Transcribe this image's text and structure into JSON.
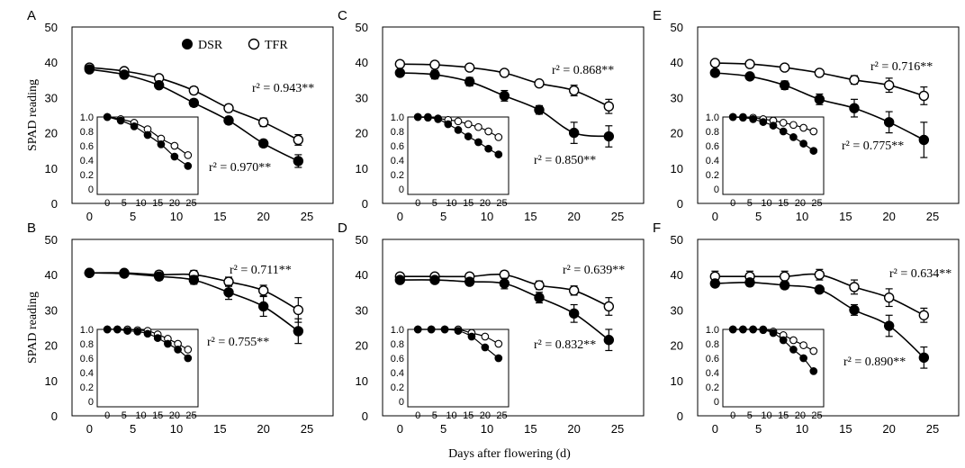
{
  "figure": {
    "ylabel": "SPAD reading",
    "xlabel": "Days after flowering (d)",
    "legend": {
      "dsr": "DSR",
      "tfr": "TFR"
    }
  },
  "chart_data": [
    {
      "panel": "A",
      "type": "line",
      "x": [
        0,
        4,
        8,
        12,
        16,
        20,
        24
      ],
      "series": [
        {
          "name": "DSR",
          "values": [
            38,
            36.5,
            33.5,
            28.5,
            23.5,
            17,
            12
          ],
          "err": [
            0.5,
            0.8,
            0.8,
            1,
            1,
            1,
            1.8
          ]
        },
        {
          "name": "TFR",
          "values": [
            38.5,
            37.5,
            35.5,
            32,
            27,
            23,
            18
          ],
          "err": [
            0.5,
            0.5,
            0.8,
            1,
            1,
            1.2,
            1.5
          ]
        }
      ],
      "annotations": [
        "r² = 0.943**",
        "r² = 0.970**"
      ],
      "xlim": [
        -2,
        28
      ],
      "ylim": [
        0,
        50
      ],
      "xticks": [
        0,
        5,
        10,
        15,
        20,
        25
      ],
      "yticks": [
        0,
        10,
        20,
        30,
        40,
        50
      ],
      "inset": {
        "x": [
          0,
          4,
          8,
          12,
          16,
          20,
          24
        ],
        "series": [
          {
            "name": "DSR",
            "values": [
              1.0,
              0.95,
              0.87,
              0.75,
              0.62,
              0.45,
              0.32
            ]
          },
          {
            "name": "TFR",
            "values": [
              1.0,
              0.97,
              0.92,
              0.83,
              0.7,
              0.6,
              0.47
            ]
          }
        ],
        "xlim": [
          -3,
          27
        ],
        "ylim": [
          0,
          1
        ],
        "xticks": [
          0,
          5,
          10,
          15,
          20,
          25
        ],
        "yticks": [
          "0",
          "0.2",
          "0.4",
          "0.6",
          "0.8",
          "1.0"
        ]
      }
    },
    {
      "panel": "B",
      "type": "line",
      "x": [
        0,
        4,
        8,
        12,
        16,
        20,
        24
      ],
      "series": [
        {
          "name": "DSR",
          "values": [
            40.5,
            40.3,
            39.5,
            38.5,
            35,
            31,
            24
          ],
          "err": [
            0.5,
            0.8,
            1,
            1.2,
            2,
            2.8,
            3.5
          ]
        },
        {
          "name": "TFR",
          "values": [
            40.5,
            40.5,
            40,
            40,
            38,
            35.5,
            30
          ],
          "err": [
            0.5,
            0.8,
            1,
            1.2,
            1.3,
            1.5,
            3.5
          ]
        }
      ],
      "annotations": [
        "r² = 0.711**",
        "r² = 0.755**"
      ],
      "xlim": [
        -2,
        28
      ],
      "ylim": [
        0,
        50
      ],
      "xticks": [
        0,
        5,
        10,
        15,
        20,
        25
      ],
      "yticks": [
        0,
        10,
        20,
        30,
        40,
        50
      ],
      "inset": {
        "x": [
          0,
          3,
          6,
          9,
          12,
          15,
          18,
          21,
          24
        ],
        "series": [
          {
            "name": "DSR",
            "values": [
              1.0,
              1.0,
              0.98,
              0.97,
              0.94,
              0.88,
              0.8,
              0.72,
              0.6
            ]
          },
          {
            "name": "TFR",
            "values": [
              1.0,
              1.0,
              1.0,
              0.99,
              0.98,
              0.93,
              0.87,
              0.8,
              0.72
            ]
          }
        ],
        "xlim": [
          -3,
          27
        ],
        "ylim": [
          0,
          1
        ],
        "xticks": [
          0,
          5,
          10,
          15,
          20,
          25
        ],
        "yticks": [
          "0",
          "0.2",
          "0.4",
          "0.6",
          "0.8",
          "1.0"
        ]
      }
    },
    {
      "panel": "C",
      "type": "line",
      "x": [
        0,
        4,
        8,
        12,
        16,
        20,
        24
      ],
      "series": [
        {
          "name": "DSR",
          "values": [
            37,
            36.5,
            34.5,
            30.5,
            26.5,
            20,
            19
          ],
          "err": [
            0.8,
            1.2,
            1.2,
            1.5,
            1.2,
            3,
            3
          ]
        },
        {
          "name": "TFR",
          "values": [
            39.5,
            39.3,
            38.5,
            37,
            34,
            32,
            27.5
          ],
          "err": [
            0.5,
            0.5,
            0.5,
            0.5,
            0.8,
            1.5,
            2
          ]
        }
      ],
      "annotations": [
        "r² = 0.868**",
        "r² = 0.850**"
      ],
      "xlim": [
        -2,
        28
      ],
      "ylim": [
        0,
        50
      ],
      "xticks": [
        0,
        5,
        10,
        15,
        20,
        25
      ],
      "yticks": [
        0,
        10,
        20,
        30,
        40,
        50
      ],
      "inset": {
        "x": [
          0,
          3,
          6,
          9,
          12,
          15,
          18,
          21,
          24
        ],
        "series": [
          {
            "name": "DSR",
            "values": [
              1.0,
              0.99,
              0.97,
              0.9,
              0.82,
              0.73,
              0.65,
              0.56,
              0.48
            ]
          },
          {
            "name": "TFR",
            "values": [
              1.0,
              1.0,
              0.98,
              0.96,
              0.94,
              0.9,
              0.86,
              0.8,
              0.72
            ]
          }
        ],
        "xlim": [
          -3,
          27
        ],
        "ylim": [
          0,
          1
        ],
        "xticks": [
          0,
          5,
          10,
          15,
          20,
          25
        ],
        "yticks": [
          "0",
          "0.2",
          "0.4",
          "0.6",
          "0.8",
          "1.0"
        ]
      }
    },
    {
      "panel": "D",
      "type": "line",
      "x": [
        0,
        4,
        8,
        12,
        16,
        20,
        24
      ],
      "series": [
        {
          "name": "DSR",
          "values": [
            38.5,
            38.5,
            38,
            37.5,
            33.5,
            29,
            21.5
          ],
          "err": [
            0.5,
            0.5,
            0.8,
            1.5,
            1.5,
            2.5,
            3
          ]
        },
        {
          "name": "TFR",
          "values": [
            39.5,
            39.5,
            39.5,
            40,
            37,
            35.5,
            31
          ],
          "err": [
            0.5,
            0.5,
            0.8,
            1,
            1.2,
            1.3,
            2.5
          ]
        }
      ],
      "annotations": [
        "r² = 0.639**",
        "r² = 0.832**"
      ],
      "xlim": [
        -2,
        28
      ],
      "ylim": [
        0,
        50
      ],
      "xticks": [
        0,
        5,
        10,
        15,
        20,
        25
      ],
      "yticks": [
        0,
        10,
        20,
        30,
        40,
        50
      ],
      "inset": {
        "x": [
          0,
          4,
          8,
          12,
          16,
          20,
          24
        ],
        "series": [
          {
            "name": "DSR",
            "values": [
              1.0,
              1.0,
              1.0,
              0.98,
              0.9,
              0.75,
              0.6
            ]
          },
          {
            "name": "TFR",
            "values": [
              1.0,
              1.0,
              1.0,
              1.0,
              0.95,
              0.9,
              0.8
            ]
          }
        ],
        "xlim": [
          -3,
          27
        ],
        "ylim": [
          0,
          1
        ],
        "xticks": [
          0,
          5,
          10,
          15,
          20,
          25
        ],
        "yticks": [
          "0",
          "0.2",
          "0.4",
          "0.6",
          "0.8",
          "1.0"
        ]
      }
    },
    {
      "panel": "E",
      "type": "line",
      "x": [
        0,
        4,
        8,
        12,
        16,
        20,
        24
      ],
      "series": [
        {
          "name": "DSR",
          "values": [
            37,
            36,
            33.5,
            29.5,
            27,
            23,
            18
          ],
          "err": [
            0.5,
            0.8,
            1.2,
            1.5,
            2.5,
            3,
            5
          ]
        },
        {
          "name": "TFR",
          "values": [
            39.8,
            39.5,
            38.5,
            37,
            35,
            33.5,
            30.5
          ],
          "err": [
            0.5,
            0.5,
            0.5,
            0.8,
            1.2,
            2,
            2.5
          ]
        }
      ],
      "annotations": [
        "r² = 0.716**",
        "r² = 0.775**"
      ],
      "xlim": [
        -2,
        28
      ],
      "ylim": [
        0,
        50
      ],
      "xticks": [
        0,
        5,
        10,
        15,
        20,
        25
      ],
      "yticks": [
        0,
        10,
        20,
        30,
        40,
        50
      ],
      "inset": {
        "x": [
          0,
          3,
          6,
          9,
          12,
          15,
          18,
          21,
          24
        ],
        "series": [
          {
            "name": "DSR",
            "values": [
              1.0,
              0.99,
              0.97,
              0.93,
              0.88,
              0.8,
              0.72,
              0.63,
              0.53
            ]
          },
          {
            "name": "TFR",
            "values": [
              1.0,
              1.0,
              0.99,
              0.97,
              0.95,
              0.92,
              0.89,
              0.85,
              0.8
            ]
          }
        ],
        "xlim": [
          -3,
          27
        ],
        "ylim": [
          0,
          1
        ],
        "xticks": [
          0,
          5,
          10,
          15,
          20,
          25
        ],
        "yticks": [
          "0",
          "0.2",
          "0.4",
          "0.6",
          "0.8",
          "1.0"
        ]
      }
    },
    {
      "panel": "F",
      "type": "line",
      "x": [
        0,
        4,
        8,
        12,
        16,
        20,
        24
      ],
      "series": [
        {
          "name": "DSR",
          "values": [
            37.5,
            37.8,
            37,
            35.8,
            30,
            25.5,
            16.5
          ],
          "err": [
            0.8,
            1,
            1,
            0.8,
            1.5,
            3,
            3
          ]
        },
        {
          "name": "TFR",
          "values": [
            39.5,
            39.5,
            39.5,
            40,
            36.5,
            33.5,
            28.5
          ],
          "err": [
            1.5,
            1.5,
            1.5,
            1.5,
            2,
            2.5,
            2
          ]
        }
      ],
      "annotations": [
        "r² = 0.634**",
        "r² = 0.890**"
      ],
      "xlim": [
        -2,
        28
      ],
      "ylim": [
        0,
        50
      ],
      "xticks": [
        0,
        5,
        10,
        15,
        20,
        25
      ],
      "yticks": [
        0,
        10,
        20,
        30,
        40,
        50
      ],
      "inset": {
        "x": [
          0,
          3,
          6,
          9,
          12,
          15,
          18,
          21,
          24
        ],
        "series": [
          {
            "name": "DSR",
            "values": [
              1.0,
              1.0,
              1.0,
              0.99,
              0.95,
              0.85,
              0.72,
              0.6,
              0.42
            ]
          },
          {
            "name": "TFR",
            "values": [
              1.0,
              1.0,
              1.0,
              1.0,
              0.97,
              0.92,
              0.85,
              0.78,
              0.7
            ]
          }
        ],
        "xlim": [
          -3,
          27
        ],
        "ylim": [
          0,
          1
        ],
        "xticks": [
          0,
          5,
          10,
          15,
          20,
          25
        ],
        "yticks": [
          "0",
          "0.2",
          "0.4",
          "0.6",
          "0.8",
          "1.0"
        ]
      }
    }
  ]
}
